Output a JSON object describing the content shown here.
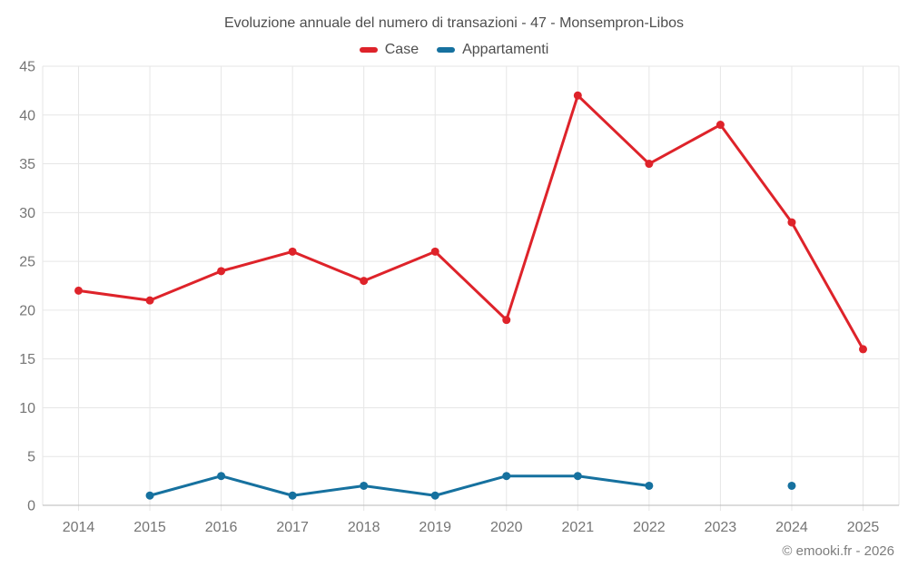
{
  "title": "Evoluzione annuale del numero di transazioni - 47 - Monsempron-Libos",
  "legend": [
    {
      "label": "Case",
      "color": "#de232a"
    },
    {
      "label": "Appartamenti",
      "color": "#16719f"
    }
  ],
  "footer": "© emooki.fr - 2026",
  "colors": {
    "grid": "#e6e6e6",
    "axis": "#b9b9b9",
    "axis_text": "#757575"
  },
  "chart_data": {
    "type": "line",
    "title": "Evoluzione annuale del numero di transazioni - 47 - Monsempron-Libos",
    "categories": [
      "2014",
      "2015",
      "2016",
      "2017",
      "2018",
      "2019",
      "2020",
      "2021",
      "2022",
      "2023",
      "2024",
      "2025"
    ],
    "series": [
      {
        "name": "Case",
        "color": "#de232a",
        "values": [
          22,
          21,
          24,
          26,
          23,
          26,
          19,
          42,
          35,
          39,
          29,
          16
        ]
      },
      {
        "name": "Appartamenti",
        "color": "#16719f",
        "values": [
          null,
          1,
          3,
          1,
          2,
          1,
          3,
          3,
          2,
          null,
          2,
          null
        ]
      }
    ],
    "xlabel": "",
    "ylabel": "",
    "ylim": [
      0,
      45
    ],
    "y_ticks": [
      0,
      5,
      10,
      15,
      20,
      25,
      30,
      35,
      40,
      45
    ],
    "grid": true,
    "legend_position": "top"
  }
}
